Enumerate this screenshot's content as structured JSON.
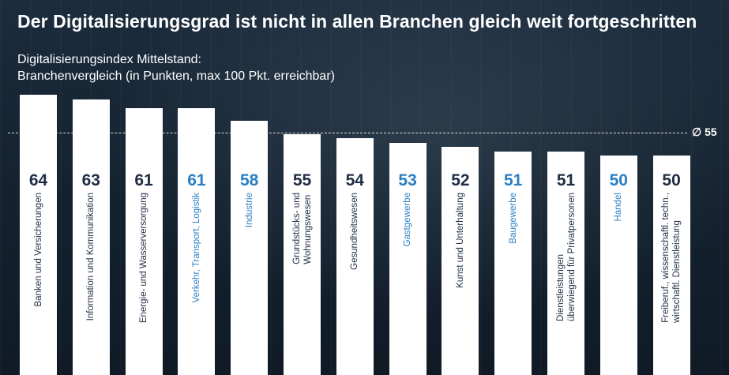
{
  "title": "Der Digitalisierungsgrad ist nicht in allen Branchen gleich weit fortgeschritten",
  "subtitle_line1": "Digitalisierungsindex Mittelstand:",
  "subtitle_line2": "Branchenvergleich (in Punkten, max 100 Pkt. erreichbar)",
  "average_label": "∅ 55",
  "colors": {
    "dark_text": "#1f2d44",
    "blue_text": "#2a7fc4",
    "bar": "#ffffff"
  },
  "chart_data": {
    "type": "bar",
    "title": "Digitalisierungsindex Mittelstand: Branchenvergleich (in Punkten, max 100 Pkt. erreichbar)",
    "average": 55,
    "categories": [
      "Banken und Versicherungen",
      "Information und Kommunikation",
      "Energie- und Wasserversorgung",
      "Verkehr, Transport, Logistik",
      "Industrie",
      "Grundstücks- und\nWohnungswesen",
      "Gesundheitswesen",
      "Gastgewerbe",
      "Kunst und Unterhaltung",
      "Baugewerbe",
      "Dienstleistungen\nüberwiegend für Privatpersonen",
      "Handel",
      "Freiberuf., wissenschaftl. techn.,\nwirtschaftl. Dienstleistung"
    ],
    "values": [
      64,
      63,
      61,
      61,
      58,
      55,
      54,
      53,
      52,
      51,
      51,
      50,
      50
    ],
    "label_colors": [
      "dark",
      "dark",
      "dark",
      "blue",
      "blue",
      "dark",
      "dark",
      "blue",
      "dark",
      "blue",
      "dark",
      "blue",
      "dark"
    ]
  }
}
